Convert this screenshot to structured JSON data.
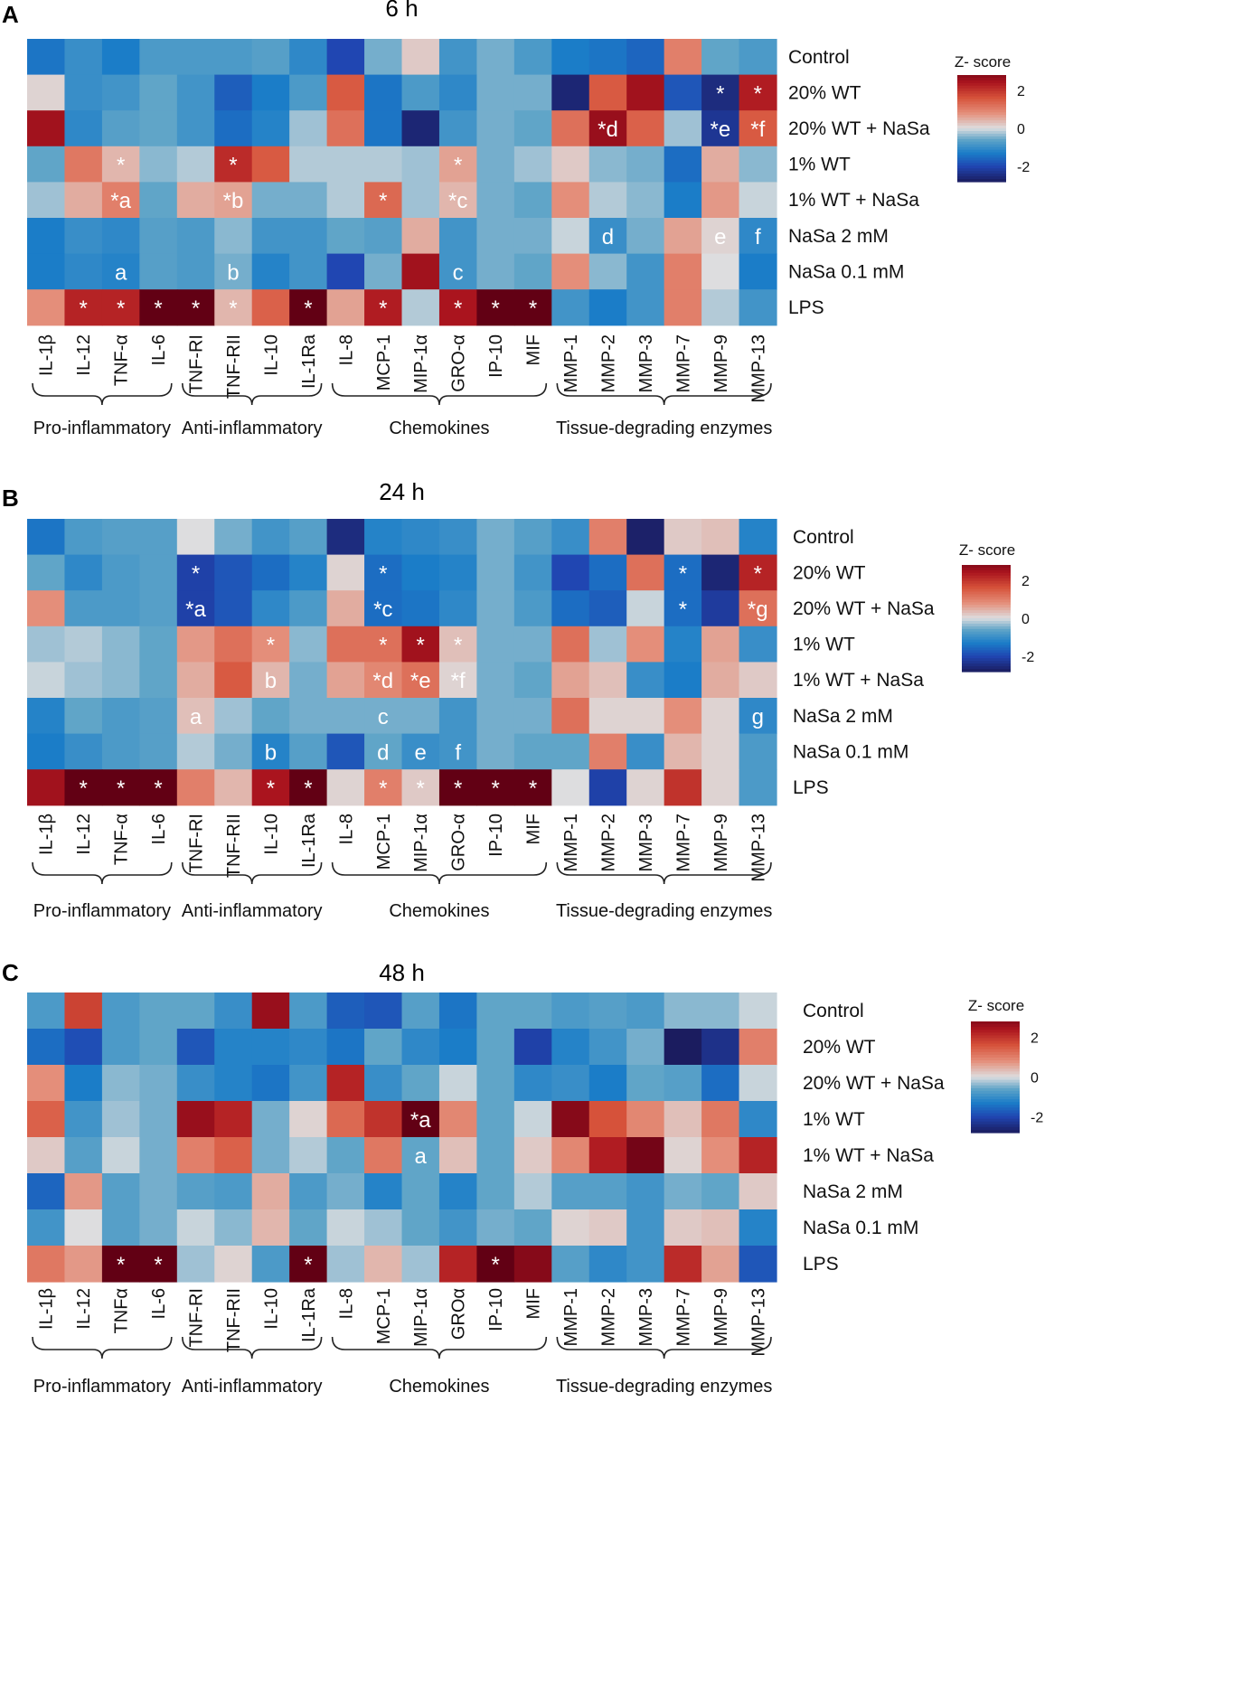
{
  "chart_data": [
    {
      "type": "heatmap",
      "panel_letter": "A",
      "title": "6 h",
      "rows": [
        "Control",
        "20% WT",
        "20% WT + NaSa",
        "1% WT",
        "1% WT + NaSa",
        "NaSa 2 mM",
        "NaSa 0.1 mM",
        "LPS"
      ],
      "columns": [
        "IL-1β",
        "IL-12",
        "TNF-α",
        "IL-6",
        "TNF-RI",
        "TNF-RII",
        "IL-10",
        "IL-1Ra",
        "IL-8",
        "MCP-1",
        "MIP-1α",
        "GRO-α",
        "IP-10",
        "MIF",
        "MMP-1",
        "MMP-2",
        "MMP-3",
        "MMP-7",
        "MMP-9",
        "MMP-13"
      ],
      "groups": [
        {
          "label": "Pro-inflammatory",
          "start": 0,
          "end": 3
        },
        {
          "label": "Anti-inflammatory",
          "start": 4,
          "end": 7
        },
        {
          "label": "Chemokines",
          "start": 8,
          "end": 13
        },
        {
          "label": "Tissue-degrading enzymes",
          "start": 14,
          "end": 19
        }
      ],
      "values": [
        [
          -1.4,
          -1.0,
          -1.3,
          -0.8,
          -0.8,
          -0.8,
          -0.7,
          -1.1,
          -2.0,
          -0.5,
          0.2,
          -0.9,
          -0.5,
          -0.8,
          -1.3,
          -1.4,
          -1.6,
          1.0,
          -0.6,
          -0.8
        ],
        [
          0.1,
          -1.0,
          -0.9,
          -0.6,
          -0.9,
          -1.7,
          -1.3,
          -0.8,
          1.5,
          -1.4,
          -0.8,
          -1.1,
          -0.5,
          -0.5,
          -2.6,
          1.5,
          2.5,
          -1.8,
          -2.5,
          2.3
        ],
        [
          2.5,
          -1.1,
          -0.7,
          -0.6,
          -0.9,
          -1.5,
          -1.2,
          -0.3,
          1.2,
          -1.4,
          -2.6,
          -0.9,
          -0.5,
          -0.6,
          1.2,
          2.6,
          1.4,
          -0.3,
          -2.3,
          1.5
        ],
        [
          -0.6,
          1.1,
          0.4,
          -0.4,
          -0.2,
          2.1,
          1.5,
          -0.2,
          -0.2,
          -0.2,
          -0.3,
          0.6,
          -0.5,
          -0.3,
          0.2,
          -0.4,
          -0.5,
          -1.5,
          0.5,
          -0.4
        ],
        [
          -0.3,
          0.5,
          1.0,
          -0.6,
          0.5,
          0.6,
          -0.5,
          -0.5,
          -0.2,
          1.3,
          -0.3,
          0.4,
          -0.5,
          -0.6,
          0.8,
          -0.2,
          -0.4,
          -1.3,
          0.7,
          -0.1
        ],
        [
          -1.3,
          -1.0,
          -1.1,
          -0.7,
          -0.8,
          -0.4,
          -0.9,
          -0.9,
          -0.6,
          -0.7,
          0.5,
          -0.9,
          -0.5,
          -0.5,
          -0.1,
          -1.0,
          -0.5,
          0.6,
          0.1,
          -1.1
        ],
        [
          -1.3,
          -1.1,
          -1.2,
          -0.7,
          -0.8,
          -0.5,
          -1.2,
          -0.9,
          -2.0,
          -0.5,
          2.5,
          -0.9,
          -0.5,
          -0.6,
          0.8,
          -0.4,
          -0.9,
          1.0,
          0.0,
          -1.3
        ],
        [
          0.8,
          2.2,
          2.2,
          3.2,
          3.2,
          0.4,
          1.4,
          3.2,
          0.6,
          2.3,
          -0.2,
          2.4,
          3.2,
          3.2,
          -0.9,
          -1.3,
          -0.9,
          1.0,
          -0.2,
          -0.9
        ]
      ],
      "annotations": [
        {
          "row": 1,
          "col": 18,
          "text": "*"
        },
        {
          "row": 1,
          "col": 19,
          "text": "*"
        },
        {
          "row": 2,
          "col": 15,
          "text": "*d"
        },
        {
          "row": 2,
          "col": 18,
          "text": "*e"
        },
        {
          "row": 2,
          "col": 19,
          "text": "*f"
        },
        {
          "row": 3,
          "col": 2,
          "text": "*"
        },
        {
          "row": 3,
          "col": 5,
          "text": "*"
        },
        {
          "row": 3,
          "col": 11,
          "text": "*"
        },
        {
          "row": 4,
          "col": 2,
          "text": "*a"
        },
        {
          "row": 4,
          "col": 5,
          "text": "*b"
        },
        {
          "row": 4,
          "col": 9,
          "text": "*"
        },
        {
          "row": 4,
          "col": 11,
          "text": "*c"
        },
        {
          "row": 5,
          "col": 15,
          "text": "d"
        },
        {
          "row": 5,
          "col": 18,
          "text": "e"
        },
        {
          "row": 5,
          "col": 19,
          "text": "f"
        },
        {
          "row": 6,
          "col": 2,
          "text": "a"
        },
        {
          "row": 6,
          "col": 5,
          "text": "b"
        },
        {
          "row": 6,
          "col": 11,
          "text": "c"
        },
        {
          "row": 7,
          "col": 1,
          "text": "*"
        },
        {
          "row": 7,
          "col": 2,
          "text": "*"
        },
        {
          "row": 7,
          "col": 3,
          "text": "*"
        },
        {
          "row": 7,
          "col": 4,
          "text": "*"
        },
        {
          "row": 7,
          "col": 5,
          "text": "*"
        },
        {
          "row": 7,
          "col": 7,
          "text": "*"
        },
        {
          "row": 7,
          "col": 9,
          "text": "*"
        },
        {
          "row": 7,
          "col": 11,
          "text": "*"
        },
        {
          "row": 7,
          "col": 12,
          "text": "*"
        },
        {
          "row": 7,
          "col": 13,
          "text": "*"
        }
      ],
      "legend": {
        "title": "Z- score",
        "ticks": [
          "2",
          "0",
          "-2"
        ],
        "range": [
          -2.8,
          2.8
        ]
      }
    },
    {
      "type": "heatmap",
      "panel_letter": "B",
      "title": "24 h",
      "rows": [
        "Control",
        "20% WT",
        "20% WT + NaSa",
        "1% WT",
        "1% WT + NaSa",
        "NaSa 2 mM",
        "NaSa 0.1 mM",
        "LPS"
      ],
      "columns": [
        "IL-1β",
        "IL-12",
        "TNF-α",
        "IL-6",
        "TNF-RI",
        "TNF-RII",
        "IL-10",
        "IL-1Ra",
        "IL-8",
        "MCP-1",
        "MIP-1α",
        "GRO-α",
        "IP-10",
        "MIF",
        "MMP-1",
        "MMP-2",
        "MMP-3",
        "MMP-7",
        "MMP-9",
        "MMP-13"
      ],
      "groups": [
        {
          "label": "Pro-inflammatory",
          "start": 0,
          "end": 3
        },
        {
          "label": "Anti-inflammatory",
          "start": 4,
          "end": 7
        },
        {
          "label": "Chemokines",
          "start": 8,
          "end": 13
        },
        {
          "label": "Tissue-degrading enzymes",
          "start": 14,
          "end": 19
        }
      ],
      "values": [
        [
          -1.4,
          -0.8,
          -0.7,
          -0.7,
          0.0,
          -0.5,
          -0.9,
          -0.7,
          -2.5,
          -1.2,
          -1.1,
          -1.0,
          -0.5,
          -0.7,
          -1.0,
          1.0,
          -2.7,
          0.2,
          0.3,
          -1.2
        ],
        [
          -0.6,
          -1.1,
          -0.8,
          -0.7,
          -2.1,
          -1.8,
          -1.5,
          -1.2,
          0.1,
          -1.5,
          -1.3,
          -1.2,
          -0.5,
          -0.9,
          -2.0,
          -1.5,
          1.2,
          -1.5,
          -2.6,
          2.2
        ],
        [
          0.8,
          -0.8,
          -0.8,
          -0.7,
          -2.1,
          -1.8,
          -1.1,
          -0.8,
          0.5,
          -1.5,
          -1.4,
          -1.1,
          -0.5,
          -0.8,
          -1.5,
          -1.7,
          -0.1,
          -1.5,
          -2.2,
          1.2
        ],
        [
          -0.3,
          -0.2,
          -0.4,
          -0.6,
          0.7,
          1.2,
          0.8,
          -0.4,
          1.2,
          1.2,
          2.5,
          0.3,
          -0.5,
          -0.5,
          1.2,
          -0.3,
          0.8,
          -1.2,
          0.6,
          -1.0
        ],
        [
          -0.1,
          -0.3,
          -0.4,
          -0.6,
          0.5,
          1.5,
          0.4,
          -0.5,
          0.6,
          0.9,
          1.2,
          0.1,
          -0.5,
          -0.6,
          0.6,
          0.3,
          -1.0,
          -1.3,
          0.5,
          0.2
        ],
        [
          -1.2,
          -0.6,
          -0.8,
          -0.7,
          0.3,
          -0.3,
          -0.6,
          -0.5,
          -0.5,
          -0.5,
          -0.5,
          -0.9,
          -0.5,
          -0.5,
          1.2,
          0.1,
          0.1,
          0.8,
          0.1,
          -1.1
        ],
        [
          -1.3,
          -1.0,
          -0.8,
          -0.7,
          -0.2,
          -0.5,
          -1.2,
          -0.7,
          -1.8,
          -0.6,
          -1.0,
          -0.9,
          -0.5,
          -0.6,
          -0.6,
          1.0,
          -1.0,
          0.4,
          0.1,
          -0.8
        ],
        [
          2.5,
          3.2,
          3.2,
          3.2,
          1.0,
          0.4,
          2.4,
          3.2,
          0.1,
          1.0,
          0.2,
          3.2,
          3.2,
          3.2,
          0.0,
          -2.1,
          0.1,
          2.0,
          0.1,
          -0.8
        ]
      ],
      "annotations": [
        {
          "row": 1,
          "col": 4,
          "text": "*"
        },
        {
          "row": 1,
          "col": 9,
          "text": "*"
        },
        {
          "row": 1,
          "col": 17,
          "text": "*"
        },
        {
          "row": 1,
          "col": 19,
          "text": "*"
        },
        {
          "row": 2,
          "col": 4,
          "text": "*a"
        },
        {
          "row": 2,
          "col": 9,
          "text": "*c"
        },
        {
          "row": 2,
          "col": 17,
          "text": "*"
        },
        {
          "row": 2,
          "col": 19,
          "text": "*g"
        },
        {
          "row": 3,
          "col": 6,
          "text": "*"
        },
        {
          "row": 3,
          "col": 9,
          "text": "*"
        },
        {
          "row": 3,
          "col": 10,
          "text": "*"
        },
        {
          "row": 3,
          "col": 11,
          "text": "*"
        },
        {
          "row": 4,
          "col": 6,
          "text": "b"
        },
        {
          "row": 4,
          "col": 9,
          "text": "*d"
        },
        {
          "row": 4,
          "col": 10,
          "text": "*e"
        },
        {
          "row": 4,
          "col": 11,
          "text": "*f"
        },
        {
          "row": 5,
          "col": 4,
          "text": "a"
        },
        {
          "row": 5,
          "col": 9,
          "text": "c"
        },
        {
          "row": 5,
          "col": 19,
          "text": "g"
        },
        {
          "row": 6,
          "col": 6,
          "text": "b"
        },
        {
          "row": 6,
          "col": 9,
          "text": "d"
        },
        {
          "row": 6,
          "col": 10,
          "text": "e"
        },
        {
          "row": 6,
          "col": 11,
          "text": "f"
        },
        {
          "row": 7,
          "col": 1,
          "text": "*"
        },
        {
          "row": 7,
          "col": 2,
          "text": "*"
        },
        {
          "row": 7,
          "col": 3,
          "text": "*"
        },
        {
          "row": 7,
          "col": 6,
          "text": "*"
        },
        {
          "row": 7,
          "col": 7,
          "text": "*"
        },
        {
          "row": 7,
          "col": 9,
          "text": "*"
        },
        {
          "row": 7,
          "col": 10,
          "text": "*"
        },
        {
          "row": 7,
          "col": 11,
          "text": "*"
        },
        {
          "row": 7,
          "col": 12,
          "text": "*"
        },
        {
          "row": 7,
          "col": 13,
          "text": "*"
        }
      ],
      "legend": {
        "title": "Z- score",
        "ticks": [
          "2",
          "0",
          "-2"
        ],
        "range": [
          -2.8,
          2.8
        ]
      }
    },
    {
      "type": "heatmap",
      "panel_letter": "C",
      "title": "48 h",
      "rows": [
        "Control",
        "20% WT",
        "20% WT + NaSa",
        "1% WT",
        "1% WT + NaSa",
        "NaSa 2 mM",
        "NaSa 0.1 mM",
        "LPS"
      ],
      "columns": [
        "IL-1β",
        "IL-12",
        "TNFα",
        "IL-6",
        "TNF-RI",
        "TNF-RII",
        "IL-10",
        "IL-1Ra",
        "IL-8",
        "MCP-1",
        "MIP-1α",
        "GROα",
        "IP-10",
        "MIF",
        "MMP-1",
        "MMP-2",
        "MMP-3",
        "MMP-7",
        "MMP-9",
        "MMP-13"
      ],
      "groups": [
        {
          "label": "Pro-inflammatory",
          "start": 0,
          "end": 3
        },
        {
          "label": "Anti-inflammatory",
          "start": 4,
          "end": 7
        },
        {
          "label": "Chemokines",
          "start": 8,
          "end": 13
        },
        {
          "label": "Tissue-degrading enzymes",
          "start": 14,
          "end": 19
        }
      ],
      "values": [
        [
          -0.8,
          1.8,
          -0.8,
          -0.6,
          -0.6,
          -1.0,
          2.6,
          -0.8,
          -1.7,
          -1.8,
          -0.7,
          -1.4,
          -0.6,
          -0.6,
          -0.8,
          -0.7,
          -0.8,
          -0.4,
          -0.4,
          -0.1
        ],
        [
          -1.5,
          -1.9,
          -0.8,
          -0.6,
          -1.8,
          -1.2,
          -1.2,
          -1.1,
          -1.4,
          -0.6,
          -1.1,
          -1.3,
          -0.6,
          -2.1,
          -1.2,
          -0.9,
          -0.5,
          -2.8,
          -2.4,
          1.0
        ],
        [
          0.8,
          -1.3,
          -0.4,
          -0.5,
          -1.0,
          -1.2,
          -1.4,
          -0.9,
          2.2,
          -1.0,
          -0.6,
          -0.1,
          -0.6,
          -1.1,
          -1.0,
          -1.3,
          -0.6,
          -0.7,
          -1.5,
          -0.1
        ],
        [
          1.4,
          -0.9,
          -0.3,
          -0.5,
          2.6,
          2.2,
          -0.5,
          0.1,
          1.3,
          2.0,
          3.2,
          0.9,
          -0.6,
          -0.1,
          2.8,
          1.6,
          0.9,
          0.3,
          1.1,
          -1.1
        ],
        [
          0.2,
          -0.7,
          -0.1,
          -0.5,
          1.0,
          1.4,
          -0.5,
          -0.2,
          -0.6,
          1.1,
          -0.6,
          0.3,
          -0.6,
          0.2,
          0.9,
          2.3,
          3.0,
          0.1,
          0.8,
          2.2
        ],
        [
          -1.6,
          0.7,
          -0.7,
          -0.5,
          -0.7,
          -0.8,
          0.5,
          -0.8,
          -0.5,
          -1.2,
          -0.6,
          -1.2,
          -0.6,
          -0.2,
          -0.7,
          -0.7,
          -0.9,
          -0.5,
          -0.6,
          0.2
        ],
        [
          -0.9,
          0.0,
          -0.7,
          -0.5,
          -0.1,
          -0.4,
          0.4,
          -0.6,
          -0.1,
          -0.3,
          -0.6,
          -0.9,
          -0.5,
          -0.6,
          0.1,
          0.2,
          -0.9,
          0.2,
          0.3,
          -1.2
        ],
        [
          1.1,
          0.7,
          3.2,
          3.2,
          -0.3,
          0.1,
          -0.8,
          3.2,
          -0.3,
          0.4,
          -0.3,
          2.2,
          3.2,
          2.8,
          -0.7,
          -1.1,
          -0.9,
          2.1,
          0.6,
          -1.8
        ]
      ],
      "annotations": [
        {
          "row": 3,
          "col": 10,
          "text": "*a"
        },
        {
          "row": 4,
          "col": 10,
          "text": "a"
        },
        {
          "row": 7,
          "col": 2,
          "text": "*"
        },
        {
          "row": 7,
          "col": 3,
          "text": "*"
        },
        {
          "row": 7,
          "col": 7,
          "text": "*"
        },
        {
          "row": 7,
          "col": 12,
          "text": "*"
        }
      ],
      "legend": {
        "title": "Z- score",
        "ticks": [
          "2",
          "0",
          "-2"
        ],
        "range": [
          -2.8,
          2.8
        ]
      }
    }
  ]
}
